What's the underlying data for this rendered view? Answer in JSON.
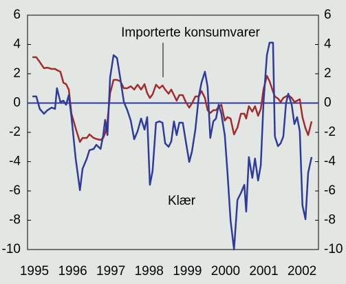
{
  "chart_data": {
    "type": "line",
    "x": [
      1994.95,
      1995.05,
      1995.14,
      1995.25,
      1995.34,
      1995.45,
      1995.54,
      1995.59,
      1995.68,
      1995.76,
      1995.83,
      1995.9,
      1995.97,
      1996.08,
      1996.19,
      1996.26,
      1996.37,
      1996.44,
      1996.55,
      1996.62,
      1996.73,
      1996.8,
      1996.85,
      1996.91,
      1996.98,
      1997.07,
      1997.16,
      1997.25,
      1997.34,
      1997.43,
      1997.52,
      1997.61,
      1997.7,
      1997.79,
      1997.88,
      1997.95,
      1998.02,
      1998.09,
      1998.18,
      1998.27,
      1998.35,
      1998.42,
      1998.51,
      1998.58,
      1998.65,
      1998.72,
      1998.79,
      1998.88,
      1998.96,
      1999.05,
      1999.12,
      1999.21,
      1999.3,
      1999.37,
      1999.46,
      1999.53,
      1999.6,
      1999.68,
      1999.75,
      1999.82,
      1999.89,
      1999.98,
      2000.05,
      2000.13,
      2000.22,
      2000.31,
      2000.4,
      2000.49,
      2000.54,
      2000.61,
      2000.7,
      2000.77,
      2000.85,
      2000.92,
      2000.99,
      2001.08,
      2001.15,
      2001.24,
      2001.29,
      2001.37,
      2001.44,
      2001.51,
      2001.58,
      2001.64,
      2001.73,
      2001.8,
      2001.87,
      2001.94,
      2002.01,
      2002.09,
      2002.16,
      2002.25
    ],
    "series": [
      {
        "name": "Importerte konsumvarer",
        "color": "#a32b2b",
        "values": [
          3.13,
          3.13,
          2.8,
          2.38,
          2.42,
          2.33,
          2.33,
          2.25,
          2.14,
          1.39,
          1.29,
          0.92,
          -0.73,
          -1.72,
          -2.66,
          -2.38,
          -2.38,
          -2.14,
          -2.38,
          -2.45,
          -2.52,
          -2.38,
          -2.05,
          -1.25,
          0.68,
          1.58,
          1.58,
          1.48,
          1.01,
          1.01,
          1.15,
          0.92,
          1.25,
          0.92,
          1.29,
          0.68,
          0.35,
          0.59,
          1.25,
          1.01,
          1.2,
          0.92,
          0.64,
          0.92,
          0.54,
          0.16,
          0.54,
          0.54,
          0.07,
          -0.31,
          -0.02,
          0.45,
          0.45,
          0.82,
          0.35,
          -0.49,
          -0.68,
          -0.49,
          -0.49,
          -0.26,
          -0.12,
          -1.2,
          -0.96,
          -1.06,
          -2.14,
          -1.67,
          -0.73,
          -0.73,
          -1.06,
          -0.21,
          -0.59,
          -0.21,
          -0.87,
          -0.4,
          0.92,
          1.86,
          1.48,
          0.78,
          0.45,
          0.31,
          0.07,
          0.35,
          0.45,
          0.54,
          0.35,
          0.07,
          0.16,
          0.26,
          -0.96,
          -1.72,
          -2.19,
          -1.25
        ]
      },
      {
        "name": "Klær",
        "color": "#2e3a9c",
        "values": [
          0.45,
          0.45,
          -0.4,
          -0.73,
          -0.49,
          -0.31,
          -0.4,
          1.01,
          0.07,
          0.16,
          -0.12,
          0.54,
          -0.96,
          -3.79,
          -5.95,
          -4.49,
          -3.79,
          -3.22,
          -3.13,
          -2.85,
          -3.13,
          -2.19,
          -1.15,
          -2.19,
          1.76,
          3.27,
          3.08,
          1.62,
          0.07,
          -0.49,
          -1.2,
          -2.47,
          -1.91,
          -1.06,
          -1.81,
          -0.96,
          -5.58,
          -4.64,
          -1.34,
          -1.25,
          -1.34,
          -2.75,
          -2.99,
          -2.61,
          -1.25,
          -2.19,
          -1.34,
          -1.34,
          -2.61,
          -4.02,
          -3.32,
          -1.81,
          0.45,
          1.39,
          2.14,
          1.11,
          -2.38,
          -1.25,
          -1.06,
          -0.12,
          -0.73,
          -2.19,
          -4.75,
          -8.02,
          -10,
          -6.61,
          -6.14,
          -5.58,
          -7.41,
          -3.69,
          -5.11,
          -3.79,
          -5.29,
          -4.26,
          -0.02,
          3.27,
          4.12,
          4.12,
          -2.28,
          -2.94,
          -2.75,
          -2.28,
          -0.02,
          0.64,
          -0.12,
          -1.44,
          -0.96,
          -1.91,
          -6.99,
          -7.93,
          -4.75,
          -3.69
        ]
      }
    ],
    "xlim": [
      1994.82,
      2002.43
    ],
    "xticks": [
      1995,
      1996,
      1997,
      1998,
      1999,
      2000,
      2001,
      2002
    ],
    "ylim": [
      -10,
      6
    ],
    "yticks": [
      6,
      4,
      2,
      0,
      -2,
      -4,
      -6,
      -8,
      -10
    ]
  }
}
